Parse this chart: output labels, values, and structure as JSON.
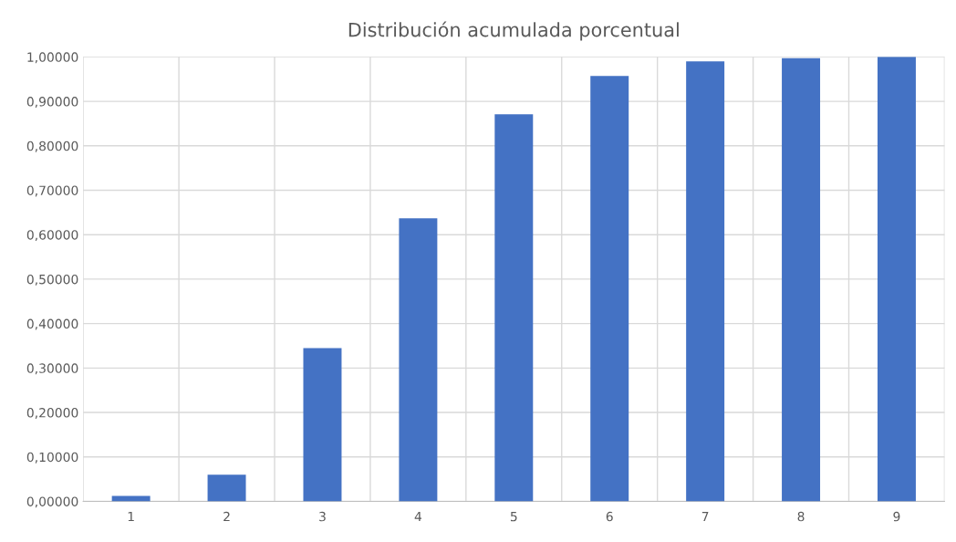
{
  "chart_data": {
    "type": "bar",
    "title": "Distribución acumulada porcentual",
    "categories": [
      "1",
      "2",
      "3",
      "4",
      "5",
      "6",
      "7",
      "8",
      "9"
    ],
    "values": [
      0.012,
      0.06,
      0.345,
      0.637,
      0.871,
      0.957,
      0.99,
      0.997,
      1.0
    ],
    "color": "#4472c4",
    "ylim": [
      0,
      1
    ],
    "yticks": [
      {
        "value": 0,
        "label": "0,00000"
      },
      {
        "value": 0.1,
        "label": "0,10000"
      },
      {
        "value": 0.2,
        "label": "0,20000"
      },
      {
        "value": 0.3,
        "label": "0,30000"
      },
      {
        "value": 0.4,
        "label": "0,40000"
      },
      {
        "value": 0.5,
        "label": "0,50000"
      },
      {
        "value": 0.6,
        "label": "0,60000"
      },
      {
        "value": 0.7,
        "label": "0,70000"
      },
      {
        "value": 0.8,
        "label": "0,80000"
      },
      {
        "value": 0.9,
        "label": "0,90000"
      },
      {
        "value": 1,
        "label": "1,00000"
      }
    ],
    "grid": true
  }
}
